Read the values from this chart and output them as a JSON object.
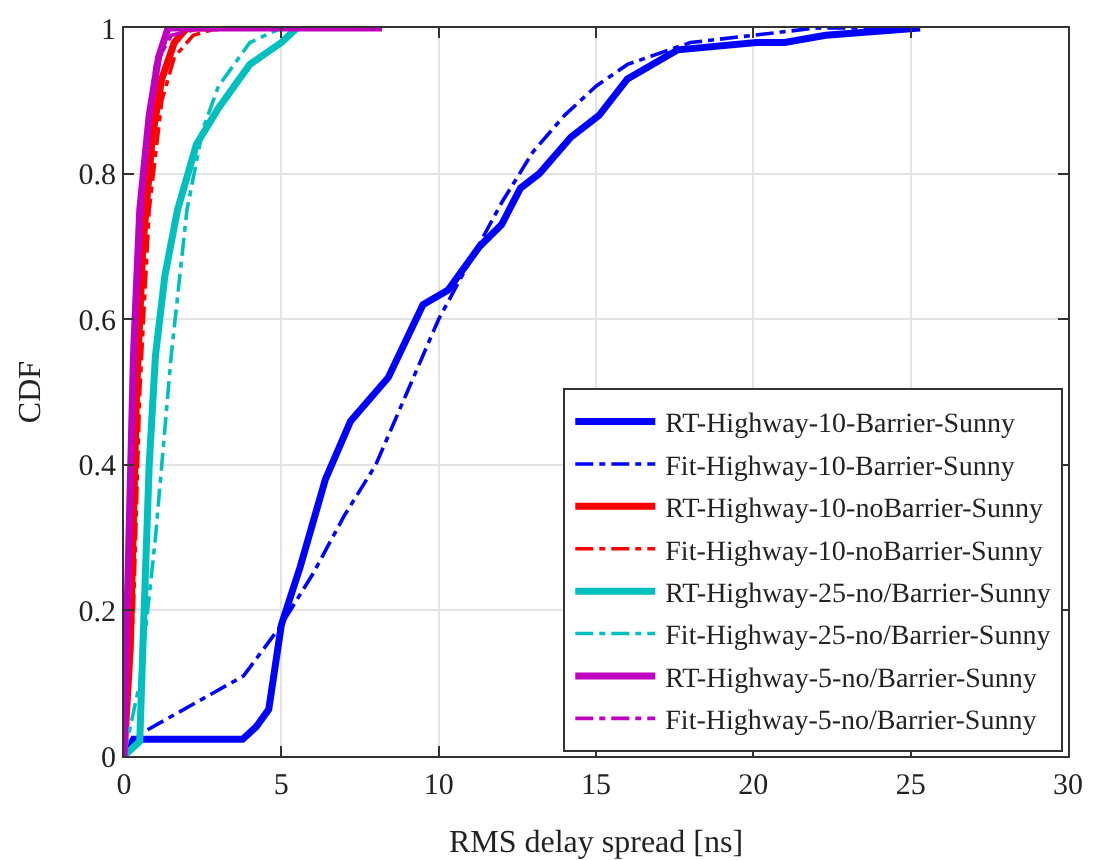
{
  "chart_data": {
    "type": "line",
    "xlabel": "RMS delay spread [ns]",
    "ylabel": "CDF",
    "xlim": [
      0,
      30
    ],
    "ylim": [
      0,
      1
    ],
    "xticks": [
      0,
      5,
      10,
      15,
      20,
      25,
      30
    ],
    "yticks": [
      0,
      0.2,
      0.4,
      0.6,
      0.8,
      1
    ],
    "grid": true,
    "legend": "bottom right",
    "marker": "none",
    "series": [
      {
        "name": "RT-Highway-10-Barrier-Sunny",
        "color": "#0000ff",
        "line_style": "solid",
        "x": [
          0,
          0.3,
          3.77,
          4.2,
          4.6,
          5,
          5.6,
          6.4,
          7.2,
          8.4,
          9.5,
          10.3,
          11.3,
          12,
          12.6,
          13.2,
          14.2,
          15.1,
          16,
          17.6,
          20.1,
          21,
          22.3,
          25.3
        ],
        "values": [
          0,
          0.023,
          0.023,
          0.04,
          0.064,
          0.18,
          0.26,
          0.38,
          0.46,
          0.52,
          0.62,
          0.64,
          0.7,
          0.73,
          0.78,
          0.8,
          0.85,
          0.88,
          0.93,
          0.97,
          0.98,
          0.98,
          0.99,
          1
        ]
      },
      {
        "name": "Fit-Highway-10-Barrier-Sunny",
        "color": "#0000ff",
        "line_style": "dashed",
        "x": [
          0,
          0.5,
          3.8,
          5,
          6,
          7,
          8,
          9,
          10,
          11,
          12,
          13,
          14,
          15,
          16,
          18,
          20,
          22,
          25
        ],
        "values": [
          0,
          0.03,
          0.11,
          0.18,
          0.25,
          0.33,
          0.4,
          0.5,
          0.6,
          0.68,
          0.76,
          0.83,
          0.88,
          0.92,
          0.95,
          0.98,
          0.99,
          1,
          1
        ]
      },
      {
        "name": "RT-Highway-10-noBarrier-Sunny",
        "color": "#ff0000",
        "line_style": "solid",
        "x": [
          0,
          0.2,
          0.4,
          0.6,
          0.9,
          1.2,
          1.6,
          2,
          3
        ],
        "values": [
          0,
          0.15,
          0.5,
          0.7,
          0.85,
          0.93,
          0.98,
          1,
          1
        ]
      },
      {
        "name": "Fit-Highway-10-noBarrier-Sunny",
        "color": "#ff0000",
        "line_style": "dashed",
        "x": [
          0,
          0.3,
          0.5,
          0.8,
          1.2,
          1.6,
          2.2,
          3
        ],
        "values": [
          0,
          0.2,
          0.5,
          0.75,
          0.9,
          0.96,
          0.99,
          1
        ]
      },
      {
        "name": "RT-Highway-25-no/Barrier-Sunny",
        "color": "#00bfbf",
        "line_style": "solid",
        "x": [
          0,
          0.5,
          0.6,
          0.8,
          1,
          1.3,
          1.7,
          2.3,
          3,
          4,
          5,
          5.5
        ],
        "values": [
          0,
          0.02,
          0.15,
          0.4,
          0.55,
          0.66,
          0.75,
          0.84,
          0.89,
          0.95,
          0.98,
          1
        ]
      },
      {
        "name": "Fit-Highway-25-no/Barrier-Sunny",
        "color": "#00bfbf",
        "line_style": "dashed",
        "x": [
          0,
          0.5,
          1,
          1.5,
          2,
          2.5,
          3,
          4,
          5,
          6
        ],
        "values": [
          0,
          0.1,
          0.3,
          0.55,
          0.75,
          0.86,
          0.92,
          0.98,
          1,
          1
        ]
      },
      {
        "name": "RT-Highway-5-no/Barrier-Sunny",
        "color": "#bf00bf",
        "line_style": "solid",
        "x": [
          0,
          0.1,
          0.3,
          0.5,
          0.8,
          1.1,
          1.4,
          8.2
        ],
        "values": [
          0,
          0.2,
          0.55,
          0.75,
          0.88,
          0.96,
          1,
          1
        ]
      },
      {
        "name": "Fit-Highway-5-no/Barrier-Sunny",
        "color": "#bf00bf",
        "line_style": "dashed",
        "x": [
          0,
          0.2,
          0.4,
          0.7,
          1,
          1.5,
          2.5,
          4
        ],
        "values": [
          0,
          0.3,
          0.6,
          0.85,
          0.95,
          0.99,
          1,
          1
        ]
      }
    ]
  }
}
